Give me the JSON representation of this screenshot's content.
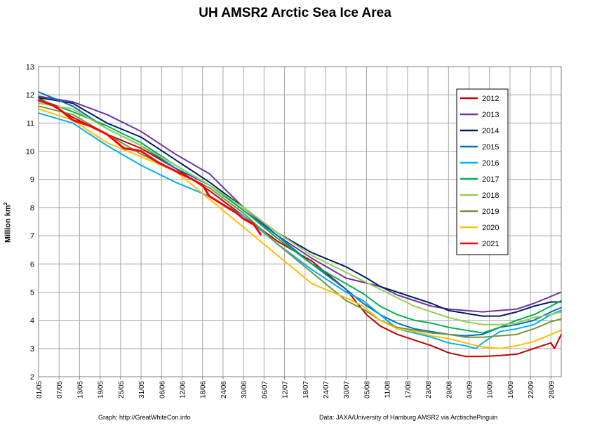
{
  "chart_data": {
    "type": "line",
    "title": "UH AMSR2 Arctic Sea Ice Area",
    "ylabel": "Million km",
    "ylabel_sup": "2",
    "ylim": [
      2,
      13
    ],
    "yticks": [
      "2",
      "3",
      "4",
      "5",
      "6",
      "7",
      "8",
      "9",
      "10",
      "11",
      "12",
      "13"
    ],
    "x_days": 153,
    "xticks": [
      {
        "day": 0,
        "label": "01/05"
      },
      {
        "day": 6,
        "label": "07/05"
      },
      {
        "day": 12,
        "label": "13/05"
      },
      {
        "day": 18,
        "label": "19/05"
      },
      {
        "day": 24,
        "label": "25/05"
      },
      {
        "day": 30,
        "label": "31/05"
      },
      {
        "day": 36,
        "label": "06/06"
      },
      {
        "day": 42,
        "label": "12/06"
      },
      {
        "day": 48,
        "label": "18/06"
      },
      {
        "day": 54,
        "label": "24/06"
      },
      {
        "day": 60,
        "label": "30/06"
      },
      {
        "day": 66,
        "label": "06/07"
      },
      {
        "day": 72,
        "label": "12/07"
      },
      {
        "day": 78,
        "label": "18/07"
      },
      {
        "day": 84,
        "label": "24/07"
      },
      {
        "day": 90,
        "label": "30/07"
      },
      {
        "day": 96,
        "label": "05/08"
      },
      {
        "day": 102,
        "label": "11/08"
      },
      {
        "day": 108,
        "label": "17/08"
      },
      {
        "day": 114,
        "label": "23/08"
      },
      {
        "day": 120,
        "label": "29/08"
      },
      {
        "day": 126,
        "label": "04/09"
      },
      {
        "day": 132,
        "label": "10/09"
      },
      {
        "day": 138,
        "label": "16/09"
      },
      {
        "day": 144,
        "label": "22/09"
      },
      {
        "day": 150,
        "label": "28/09"
      }
    ],
    "legend_position": "top-right",
    "grid": true,
    "series": [
      {
        "name": "2012",
        "color": "#c00000",
        "width": 2,
        "points": [
          [
            0,
            11.9
          ],
          [
            10,
            11.2
          ],
          [
            20,
            10.6
          ],
          [
            30,
            10.1
          ],
          [
            40,
            9.4
          ],
          [
            50,
            8.6
          ],
          [
            60,
            7.7
          ],
          [
            70,
            6.8
          ],
          [
            80,
            6.1
          ],
          [
            90,
            5.1
          ],
          [
            96,
            4.2
          ],
          [
            100,
            3.8
          ],
          [
            105,
            3.5
          ],
          [
            110,
            3.3
          ],
          [
            115,
            3.1
          ],
          [
            120,
            2.85
          ],
          [
            125,
            2.72
          ],
          [
            130,
            2.72
          ],
          [
            135,
            2.75
          ],
          [
            140,
            2.8
          ],
          [
            145,
            3.0
          ],
          [
            150,
            3.2
          ],
          [
            151,
            3.0
          ],
          [
            153,
            3.5
          ]
        ]
      },
      {
        "name": "2013",
        "color": "#7030a0",
        "width": 2,
        "points": [
          [
            0,
            11.95
          ],
          [
            10,
            11.75
          ],
          [
            20,
            11.3
          ],
          [
            30,
            10.7
          ],
          [
            40,
            9.9
          ],
          [
            50,
            9.2
          ],
          [
            60,
            8.0
          ],
          [
            70,
            7.0
          ],
          [
            80,
            6.2
          ],
          [
            90,
            5.5
          ],
          [
            100,
            5.2
          ],
          [
            105,
            4.9
          ],
          [
            110,
            4.7
          ],
          [
            115,
            4.5
          ],
          [
            120,
            4.4
          ],
          [
            125,
            4.35
          ],
          [
            130,
            4.3
          ],
          [
            135,
            4.35
          ],
          [
            140,
            4.4
          ],
          [
            145,
            4.6
          ],
          [
            150,
            4.85
          ],
          [
            153,
            5.0
          ]
        ]
      },
      {
        "name": "2014",
        "color": "#002060",
        "width": 2,
        "points": [
          [
            0,
            11.9
          ],
          [
            10,
            11.7
          ],
          [
            20,
            11.0
          ],
          [
            30,
            10.5
          ],
          [
            40,
            9.7
          ],
          [
            50,
            8.9
          ],
          [
            60,
            8.0
          ],
          [
            70,
            7.1
          ],
          [
            80,
            6.4
          ],
          [
            90,
            5.9
          ],
          [
            96,
            5.5
          ],
          [
            100,
            5.2
          ],
          [
            105,
            5.0
          ],
          [
            110,
            4.8
          ],
          [
            115,
            4.6
          ],
          [
            120,
            4.35
          ],
          [
            125,
            4.25
          ],
          [
            130,
            4.15
          ],
          [
            135,
            4.15
          ],
          [
            140,
            4.3
          ],
          [
            145,
            4.5
          ],
          [
            150,
            4.65
          ],
          [
            153,
            4.65
          ]
        ]
      },
      {
        "name": "2015",
        "color": "#0070c0",
        "width": 2,
        "points": [
          [
            0,
            12.1
          ],
          [
            10,
            11.6
          ],
          [
            20,
            10.8
          ],
          [
            30,
            10.2
          ],
          [
            40,
            9.4
          ],
          [
            50,
            8.8
          ],
          [
            60,
            7.9
          ],
          [
            70,
            7.0
          ],
          [
            80,
            6.0
          ],
          [
            90,
            5.1
          ],
          [
            95,
            4.6
          ],
          [
            100,
            4.2
          ],
          [
            105,
            3.9
          ],
          [
            110,
            3.7
          ],
          [
            115,
            3.6
          ],
          [
            120,
            3.5
          ],
          [
            125,
            3.45
          ],
          [
            130,
            3.5
          ],
          [
            135,
            3.75
          ],
          [
            140,
            3.85
          ],
          [
            145,
            4.0
          ],
          [
            150,
            4.3
          ],
          [
            153,
            4.45
          ]
        ]
      },
      {
        "name": "2016",
        "color": "#00b0f0",
        "width": 2,
        "points": [
          [
            0,
            11.35
          ],
          [
            10,
            11.0
          ],
          [
            20,
            10.2
          ],
          [
            30,
            9.5
          ],
          [
            40,
            8.9
          ],
          [
            50,
            8.4
          ],
          [
            60,
            7.7
          ],
          [
            70,
            6.7
          ],
          [
            80,
            5.8
          ],
          [
            90,
            5.0
          ],
          [
            95,
            4.7
          ],
          [
            100,
            4.2
          ],
          [
            105,
            3.7
          ],
          [
            110,
            3.55
          ],
          [
            115,
            3.4
          ],
          [
            120,
            3.2
          ],
          [
            125,
            3.1
          ],
          [
            128,
            3.0
          ],
          [
            130,
            3.2
          ],
          [
            135,
            3.6
          ],
          [
            140,
            3.7
          ],
          [
            145,
            3.85
          ],
          [
            150,
            4.2
          ],
          [
            153,
            4.35
          ]
        ]
      },
      {
        "name": "2017",
        "color": "#00b050",
        "width": 2,
        "points": [
          [
            0,
            11.85
          ],
          [
            10,
            11.4
          ],
          [
            20,
            10.9
          ],
          [
            30,
            10.3
          ],
          [
            40,
            9.5
          ],
          [
            50,
            8.8
          ],
          [
            60,
            7.9
          ],
          [
            70,
            6.9
          ],
          [
            80,
            6.0
          ],
          [
            90,
            5.3
          ],
          [
            95,
            4.95
          ],
          [
            100,
            4.5
          ],
          [
            105,
            4.2
          ],
          [
            110,
            4.0
          ],
          [
            115,
            3.9
          ],
          [
            120,
            3.75
          ],
          [
            125,
            3.65
          ],
          [
            130,
            3.55
          ],
          [
            135,
            3.75
          ],
          [
            140,
            4.0
          ],
          [
            145,
            4.2
          ],
          [
            150,
            4.5
          ],
          [
            153,
            4.7
          ]
        ]
      },
      {
        "name": "2018",
        "color": "#92d050",
        "width": 2,
        "points": [
          [
            0,
            11.7
          ],
          [
            10,
            11.5
          ],
          [
            20,
            10.8
          ],
          [
            30,
            10.2
          ],
          [
            40,
            9.5
          ],
          [
            50,
            8.8
          ],
          [
            60,
            8.0
          ],
          [
            70,
            7.1
          ],
          [
            80,
            6.3
          ],
          [
            90,
            5.7
          ],
          [
            100,
            5.1
          ],
          [
            105,
            4.8
          ],
          [
            110,
            4.5
          ],
          [
            115,
            4.3
          ],
          [
            120,
            4.1
          ],
          [
            125,
            3.95
          ],
          [
            130,
            3.85
          ],
          [
            135,
            3.85
          ],
          [
            140,
            3.9
          ],
          [
            145,
            4.1
          ],
          [
            150,
            4.2
          ],
          [
            153,
            4.3
          ]
        ]
      },
      {
        "name": "2019",
        "color": "#77933c",
        "width": 2,
        "points": [
          [
            0,
            11.6
          ],
          [
            10,
            11.3
          ],
          [
            20,
            10.6
          ],
          [
            30,
            9.9
          ],
          [
            40,
            9.3
          ],
          [
            50,
            8.7
          ],
          [
            60,
            7.8
          ],
          [
            70,
            6.7
          ],
          [
            80,
            5.7
          ],
          [
            90,
            4.7
          ],
          [
            95,
            4.4
          ],
          [
            100,
            4.0
          ],
          [
            105,
            3.75
          ],
          [
            110,
            3.65
          ],
          [
            115,
            3.55
          ],
          [
            120,
            3.5
          ],
          [
            125,
            3.4
          ],
          [
            130,
            3.4
          ],
          [
            135,
            3.45
          ],
          [
            140,
            3.5
          ],
          [
            145,
            3.7
          ],
          [
            150,
            3.95
          ],
          [
            153,
            4.05
          ]
        ]
      },
      {
        "name": "2020",
        "color": "#ffc000",
        "width": 2,
        "points": [
          [
            0,
            11.5
          ],
          [
            10,
            11.1
          ],
          [
            20,
            10.3
          ],
          [
            30,
            9.8
          ],
          [
            40,
            9.3
          ],
          [
            50,
            8.3
          ],
          [
            60,
            7.3
          ],
          [
            70,
            6.3
          ],
          [
            80,
            5.3
          ],
          [
            90,
            4.8
          ],
          [
            95,
            4.5
          ],
          [
            100,
            4.0
          ],
          [
            105,
            3.7
          ],
          [
            110,
            3.6
          ],
          [
            115,
            3.45
          ],
          [
            120,
            3.35
          ],
          [
            125,
            3.2
          ],
          [
            130,
            3.05
          ],
          [
            135,
            3.0
          ],
          [
            140,
            3.1
          ],
          [
            145,
            3.25
          ],
          [
            150,
            3.5
          ],
          [
            153,
            3.65
          ]
        ]
      },
      {
        "name": "2021",
        "color": "#ff0000",
        "width": 3,
        "points": [
          [
            0,
            11.8
          ],
          [
            5,
            11.6
          ],
          [
            10,
            11.1
          ],
          [
            15,
            10.9
          ],
          [
            20,
            10.6
          ],
          [
            25,
            10.1
          ],
          [
            28,
            10.05
          ],
          [
            30,
            10.0
          ],
          [
            35,
            9.6
          ],
          [
            40,
            9.3
          ],
          [
            45,
            9.0
          ],
          [
            48,
            8.8
          ],
          [
            50,
            8.4
          ],
          [
            54,
            8.1
          ],
          [
            58,
            7.8
          ],
          [
            60,
            7.6
          ],
          [
            63,
            7.4
          ],
          [
            65,
            7.05
          ]
        ]
      }
    ]
  },
  "footer": {
    "left": "Graph: http://GreatWhiteCon.info",
    "right": "Data: JAXA/University of Hamburg AMSR2 via ArctischePinguin"
  }
}
